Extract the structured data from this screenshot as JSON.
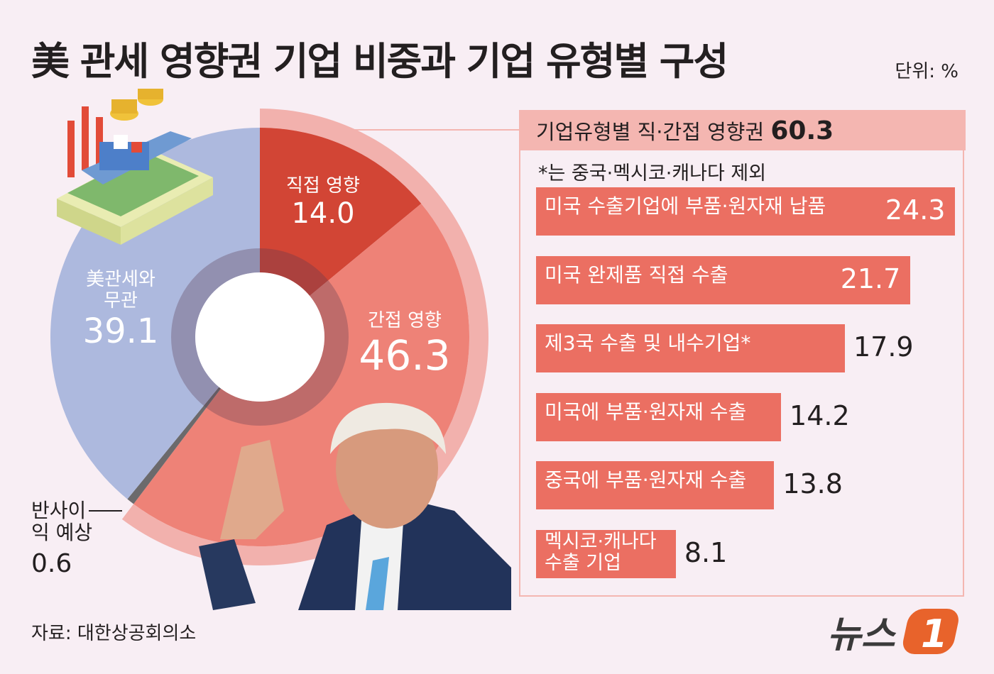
{
  "title": "美 관세 영향권 기업 비중과 기업 유형별 구성",
  "unit": "단위: %",
  "source": "자료: 대한상공회의소",
  "logo": "뉴스1",
  "chart_data": [
    {
      "type": "pie",
      "slices": [
        {
          "label": "직접 영향",
          "value": 14.0,
          "color": "#d24535"
        },
        {
          "label": "간접 영향",
          "value": 46.3,
          "color": "#ee8277"
        },
        {
          "label": "반사이익 예상",
          "value": 0.6,
          "color": "#6b6a6c"
        },
        {
          "label": "美관세와 무관",
          "value": 39.1,
          "color": "#adb9de"
        }
      ],
      "highlight_ring": {
        "covers": [
          "직접 영향",
          "간접 영향"
        ],
        "color": "#f2b1ad"
      }
    },
    {
      "type": "bar",
      "orientation": "horizontal",
      "title": "기업유형별 직·간접 영향권",
      "title_value": "60.3",
      "note": "*는 중국·멕시코·캐나다 제외",
      "categories": [
        "미국 수출기업에 부품·원자재 납품",
        "미국 완제품 직접 수출",
        "제3국 수출 및 내수기업*",
        "미국에 부품·원자재 수출",
        "중국에 부품·원자재 수출",
        "멕시코·캐나다 수출 기업"
      ],
      "values": [
        24.3,
        21.7,
        17.9,
        14.2,
        13.8,
        8.1
      ],
      "value_labels": [
        "24.3",
        "21.7",
        "17.9",
        "14.2",
        "13.8",
        "8.1"
      ],
      "color": "#eb6f62"
    }
  ]
}
